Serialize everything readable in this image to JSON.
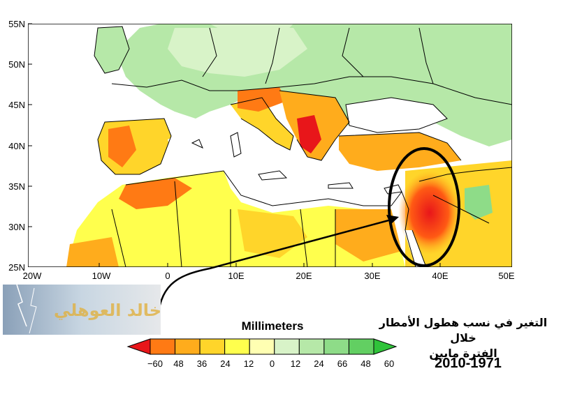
{
  "map": {
    "lat_labels": [
      "55N",
      "50N",
      "45N",
      "40N",
      "35N",
      "30N",
      "25N"
    ],
    "lon_labels": [
      "20W",
      "10W",
      "0",
      "10E",
      "20E",
      "30E",
      "40E",
      "50E"
    ],
    "land_color": "#c8eac4",
    "sea_color": "#ffffff",
    "highlight_region": "Levant (Syria, Jordan, Palestine, Lebanon)"
  },
  "legend": {
    "units": "Millimeters",
    "tick_labels": [
      "−60",
      "48",
      "36",
      "24",
      "12",
      "0",
      "12",
      "24",
      "66",
      "48",
      "60"
    ],
    "colors": [
      "#e8161a",
      "#ff7a14",
      "#ffac1c",
      "#ffd52a",
      "#ffff4d",
      "#ffffb2",
      "#d8f3c8",
      "#b6e8a8",
      "#8edc88",
      "#62cf62",
      "#2fc33a"
    ]
  },
  "title": {
    "line1": "التغير في نسب هطول الأمطار خلال",
    "line2": "الفترة مابين",
    "years": "2010-1971"
  },
  "logo": {
    "text": "خالد العوهلي"
  }
}
